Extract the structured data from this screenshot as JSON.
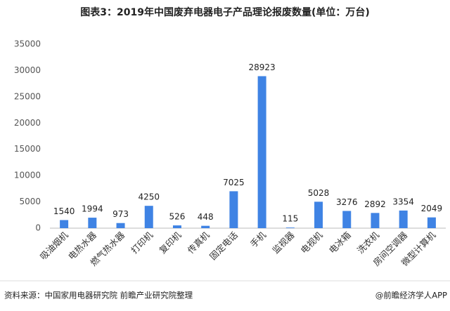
{
  "chart_data": {
    "type": "bar",
    "title": "图表3：2019年中国废弃电器电子产品理论报废数量(单位：万台)",
    "categories": [
      "吸油烟机",
      "电热水器",
      "燃气热水器",
      "打印机",
      "复印机",
      "传真机",
      "固定电话",
      "手机",
      "监视器",
      "电视机",
      "电冰箱",
      "洗衣机",
      "房间空调器",
      "微型计算机"
    ],
    "values": [
      1540,
      1994,
      973,
      4250,
      526,
      448,
      7025,
      28923,
      115,
      5028,
      3276,
      2892,
      3354,
      2049
    ],
    "color": "#3f83e4",
    "ylim": [
      0,
      35000
    ],
    "yticks": [
      0,
      5000,
      10000,
      15000,
      20000,
      25000,
      30000,
      35000
    ],
    "grid": false,
    "source": "资料来源：中国家用电器研究院 前瞻产业研究院整理",
    "brand": "@前瞻经济学人APP"
  }
}
